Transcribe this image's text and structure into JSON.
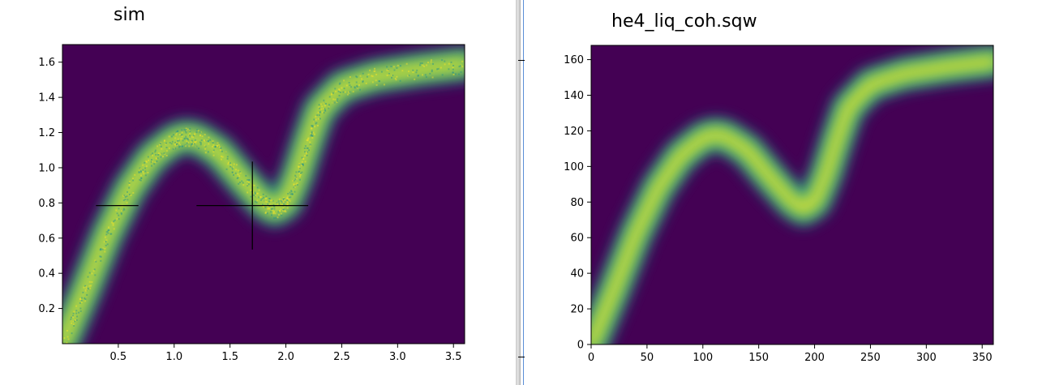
{
  "colors": {
    "background": "#440154",
    "low": "#21918c",
    "mid": "#5ec962",
    "high": "#fde725",
    "crosshair": "#000000"
  },
  "chart_data": [
    {
      "type": "heatmap",
      "title": "sim",
      "xlabel": "",
      "ylabel": "",
      "xlim": [
        0.0,
        3.6
      ],
      "ylim": [
        0.0,
        1.7
      ],
      "x_ticks": [
        0.5,
        1.0,
        1.5,
        2.0,
        2.5,
        3.0,
        3.5
      ],
      "x_tick_labels": [
        "0.5",
        "1.0",
        "1.5",
        "2.0",
        "2.5",
        "3.0",
        "3.5"
      ],
      "y_ticks": [
        0.2,
        0.4,
        0.6,
        0.8,
        1.0,
        1.2,
        1.4,
        1.6
      ],
      "y_tick_labels": [
        "0.2",
        "0.4",
        "0.6",
        "0.8",
        "1.0",
        "1.2",
        "1.4",
        "1.6"
      ],
      "colormap": "viridis",
      "grid": false,
      "noisy": true,
      "dispersion_curve": {
        "x": [
          0.0,
          0.2,
          0.4,
          0.6,
          0.8,
          1.0,
          1.1,
          1.2,
          1.4,
          1.6,
          1.8,
          1.9,
          2.0,
          2.1,
          2.2,
          2.3,
          2.5,
          2.8,
          3.2,
          3.6
        ],
        "y": [
          0.0,
          0.3,
          0.62,
          0.88,
          1.06,
          1.16,
          1.18,
          1.17,
          1.09,
          0.94,
          0.8,
          0.76,
          0.8,
          0.95,
          1.15,
          1.33,
          1.46,
          1.52,
          1.56,
          1.59
        ]
      },
      "crosshairs": [
        {
          "x": 0.49,
          "y": 0.785,
          "x_half_width": 0.19,
          "y_half_height": 0.0
        },
        {
          "x": 1.7,
          "y": 0.785,
          "x_half_width": 0.5,
          "y_half_height": 0.25
        }
      ]
    },
    {
      "type": "heatmap",
      "title": "he4_liq_coh.sqw",
      "xlabel": "",
      "ylabel": "",
      "xlim": [
        0,
        360
      ],
      "ylim": [
        0,
        168
      ],
      "x_ticks": [
        0,
        50,
        100,
        150,
        200,
        250,
        300,
        350
      ],
      "x_tick_labels": [
        "0",
        "50",
        "100",
        "150",
        "200",
        "250",
        "300",
        "350"
      ],
      "y_ticks": [
        0,
        20,
        40,
        60,
        80,
        100,
        120,
        140,
        160
      ],
      "y_tick_labels": [
        "0",
        "20",
        "40",
        "60",
        "80",
        "100",
        "120",
        "140",
        "160"
      ],
      "colormap": "viridis",
      "grid": false,
      "noisy": false,
      "dispersion_curve": {
        "x": [
          0,
          20,
          40,
          60,
          80,
          100,
          110,
          120,
          140,
          160,
          180,
          190,
          200,
          210,
          220,
          230,
          250,
          280,
          320,
          360
        ],
        "y": [
          0,
          30,
          62,
          88,
          106,
          116,
          118,
          117,
          109,
          94,
          80,
          76,
          80,
          95,
          115,
          133,
          146,
          152,
          156,
          159
        ]
      },
      "crosshairs": []
    }
  ]
}
